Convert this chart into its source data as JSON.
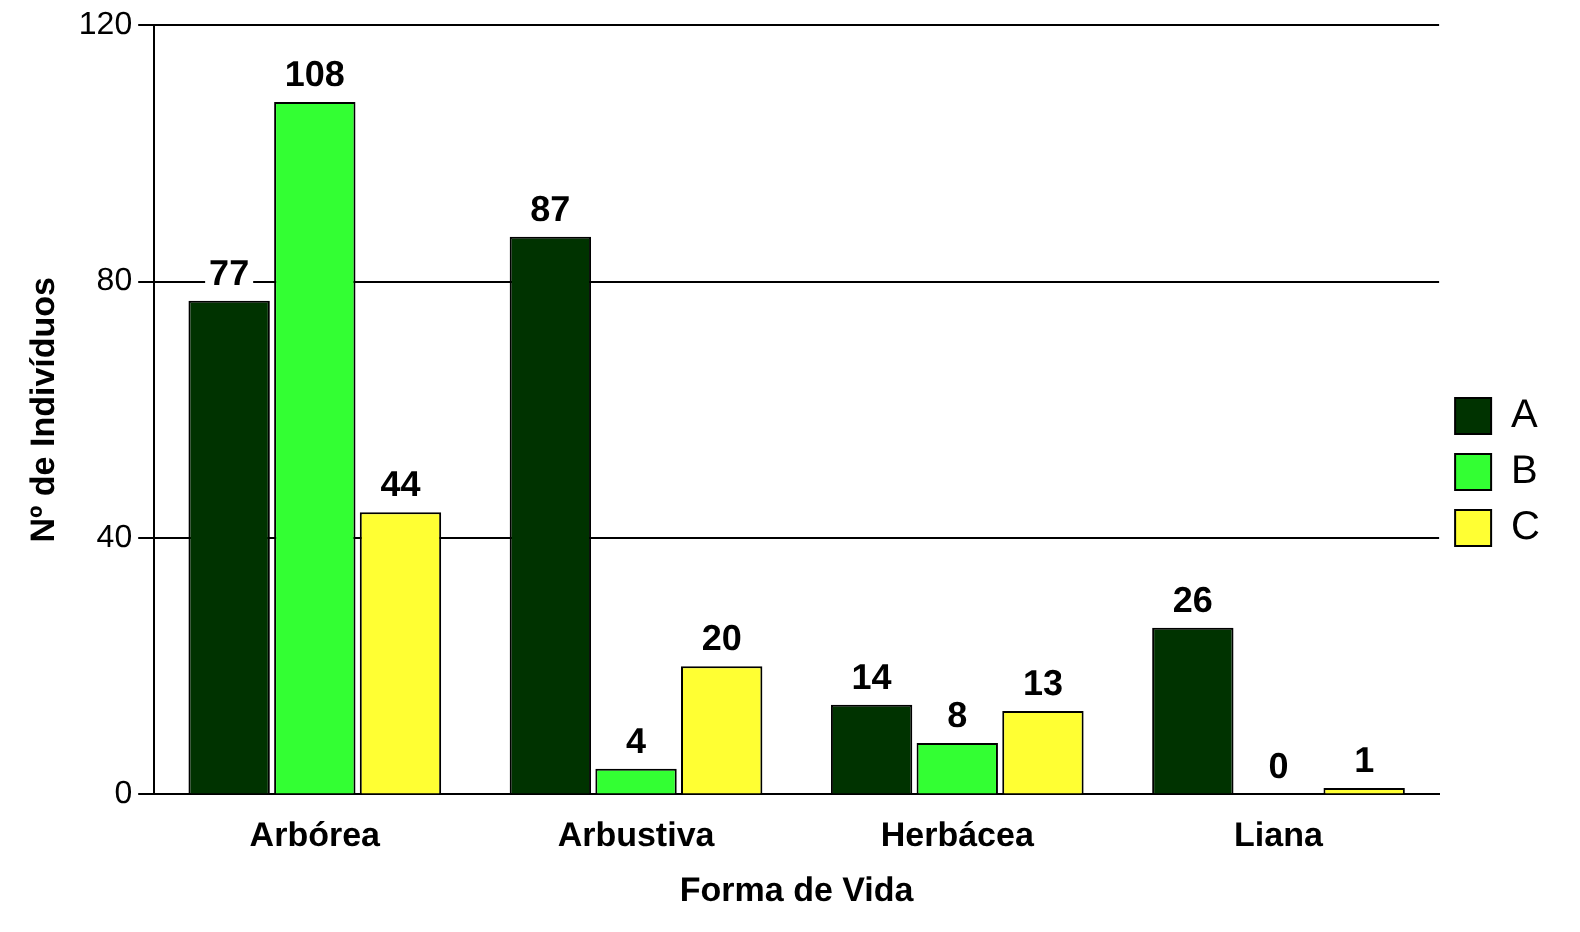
{
  "chart_data": {
    "type": "bar",
    "xlabel": "Forma de Vida",
    "ylabel": "Nº de Indivíduos",
    "categories": [
      "Arbórea",
      "Arbustiva",
      "Herbácea",
      "Liana"
    ],
    "series": [
      {
        "name": "A",
        "color": "#003300",
        "values": [
          77,
          87,
          14,
          26
        ]
      },
      {
        "name": "B",
        "color": "#33ff33",
        "values": [
          108,
          4,
          8,
          0
        ]
      },
      {
        "name": "C",
        "color": "#ffff33",
        "values": [
          44,
          20,
          13,
          1
        ]
      }
    ],
    "ylim": [
      0,
      120
    ],
    "yticks": [
      0,
      40,
      80,
      120
    ],
    "grid": "y",
    "legend": "right",
    "data_labels": true
  }
}
